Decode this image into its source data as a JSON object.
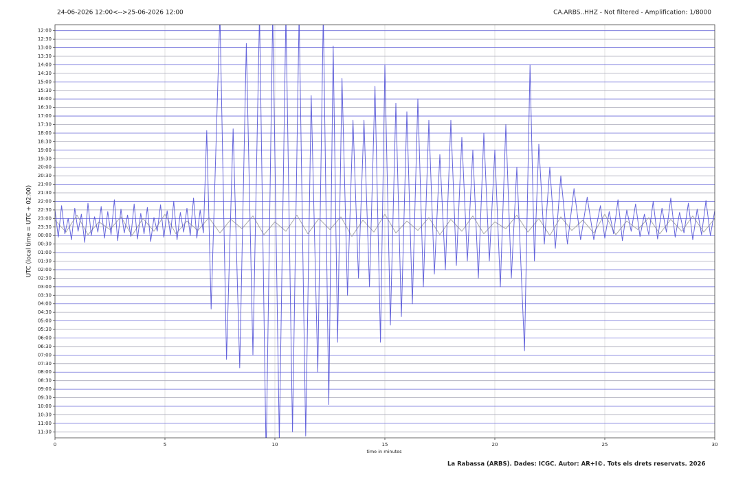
{
  "chart_data": {
    "type": "helicorder",
    "title": "24-06-2026 12:00<-->25-06-2026 12:00",
    "subtitle": "CA.ARBS..HHZ - Not filtered - Amplification: 1/8000",
    "x_label": "time in minutes",
    "y_label": "UTC (local time = UTC + 02:00)",
    "footer": "La Rabassa (ARBS). Dades: ICGC. Autor: AR+I©. Tots els drets reservats. 2026",
    "xlim": [
      0,
      30
    ],
    "xticks": [
      0,
      5,
      10,
      15,
      20,
      25,
      30
    ],
    "ylim": [
      47.7,
      -0.7
    ],
    "yticks": [
      {
        "value": 0,
        "label": "12:00"
      },
      {
        "value": 1,
        "label": "12:30"
      },
      {
        "value": 2,
        "label": "13:00"
      },
      {
        "value": 3,
        "label": "13:30"
      },
      {
        "value": 4,
        "label": "14:00"
      },
      {
        "value": 5,
        "label": "14:30"
      },
      {
        "value": 6,
        "label": "15:00"
      },
      {
        "value": 7,
        "label": "15:30"
      },
      {
        "value": 8,
        "label": "16:00"
      },
      {
        "value": 9,
        "label": "16:30"
      },
      {
        "value": 10,
        "label": "17:00"
      },
      {
        "value": 11,
        "label": "17:30"
      },
      {
        "value": 12,
        "label": "18:00"
      },
      {
        "value": 13,
        "label": "18:30"
      },
      {
        "value": 14,
        "label": "19:00"
      },
      {
        "value": 15,
        "label": "19:30"
      },
      {
        "value": 16,
        "label": "20:00"
      },
      {
        "value": 17,
        "label": "20:30"
      },
      {
        "value": 18,
        "label": "21:00"
      },
      {
        "value": 19,
        "label": "21:30"
      },
      {
        "value": 20,
        "label": "22:00"
      },
      {
        "value": 21,
        "label": "22:30"
      },
      {
        "value": 22,
        "label": "23:00"
      },
      {
        "value": 23,
        "label": "23:30"
      },
      {
        "value": 24,
        "label": "00:00"
      },
      {
        "value": 25,
        "label": "00:30"
      },
      {
        "value": 26,
        "label": "01:00"
      },
      {
        "value": 27,
        "label": "01:30"
      },
      {
        "value": 28,
        "label": "02:00"
      },
      {
        "value": 29,
        "label": "02:30"
      },
      {
        "value": 30,
        "label": "03:00"
      },
      {
        "value": 31,
        "label": "03:30"
      },
      {
        "value": 32,
        "label": "04:00"
      },
      {
        "value": 33,
        "label": "04:30"
      },
      {
        "value": 34,
        "label": "05:00"
      },
      {
        "value": 35,
        "label": "05:30"
      },
      {
        "value": 36,
        "label": "06:00"
      },
      {
        "value": 37,
        "label": "06:30"
      },
      {
        "value": 38,
        "label": "07:00"
      },
      {
        "value": 39,
        "label": "07:30"
      },
      {
        "value": 40,
        "label": "08:00"
      },
      {
        "value": 41,
        "label": "08:30"
      },
      {
        "value": 42,
        "label": "09:00"
      },
      {
        "value": 43,
        "label": "09:30"
      },
      {
        "value": 44,
        "label": "10:00"
      },
      {
        "value": 45,
        "label": "10:30"
      },
      {
        "value": 46,
        "label": "11:00"
      },
      {
        "value": 47,
        "label": "11:30"
      }
    ],
    "grid": true,
    "row_colors": [
      "#6a6ad8",
      "#a8a8b8"
    ],
    "series": [
      {
        "color": "#9a9a9a",
        "x": [
          0,
          0.5,
          1,
          1.5,
          2,
          2.5,
          3,
          3.5,
          4,
          4.5,
          5,
          5.5,
          6,
          6.5,
          7,
          7.5,
          8,
          8.5,
          9,
          9.5,
          10,
          10.5,
          11,
          11.5,
          12,
          12.5,
          13,
          13.5,
          14,
          14.5,
          15,
          15.5,
          16,
          16.5,
          17,
          17.5,
          18,
          18.5,
          19,
          19.5,
          20,
          20.5,
          21,
          21.5,
          22,
          22.5,
          23,
          23.5,
          24,
          24.5,
          25,
          25.5,
          26,
          26.5,
          27,
          27.5,
          28,
          28.5,
          29,
          29.5,
          30
        ],
        "values": [
          22.2,
          23.6,
          21.6,
          23.9,
          22.4,
          23.3,
          21.8,
          24.0,
          22.0,
          23.5,
          21.5,
          23.8,
          22.3,
          23.4,
          21.9,
          23.7,
          22.1,
          23.2,
          21.7,
          23.9,
          22.4,
          23.5,
          21.6,
          23.8,
          22.0,
          23.3,
          21.8,
          24.1,
          22.2,
          23.6,
          21.5,
          23.7,
          22.3,
          23.4,
          21.9,
          23.9,
          22.1,
          23.5,
          21.7,
          23.8,
          22.4,
          23.2,
          21.6,
          23.6,
          22.0,
          24.0,
          21.8,
          23.4,
          22.2,
          23.7,
          21.5,
          23.9,
          22.3,
          23.3,
          21.9,
          23.8,
          22.1,
          23.5,
          21.7,
          23.6,
          22.0
        ]
      },
      {
        "color": "#4b4bd6",
        "x": [
          0,
          0.15,
          0.3,
          0.45,
          0.6,
          0.75,
          0.9,
          1.05,
          1.2,
          1.35,
          1.5,
          1.65,
          1.8,
          1.95,
          2.1,
          2.25,
          2.4,
          2.55,
          2.7,
          2.85,
          3,
          3.15,
          3.3,
          3.45,
          3.6,
          3.75,
          3.9,
          4.05,
          4.2,
          4.35,
          4.5,
          4.65,
          4.8,
          4.95,
          5.1,
          5.25,
          5.4,
          5.55,
          5.7,
          5.85,
          6,
          6.15,
          6.3,
          6.45,
          6.6,
          6.75,
          6.9,
          7.1,
          7.5,
          7.8,
          8.1,
          8.4,
          8.7,
          9.0,
          9.3,
          9.6,
          9.9,
          10.2,
          10.5,
          10.8,
          11.1,
          11.4,
          11.65,
          11.95,
          12.2,
          12.45,
          12.65,
          12.85,
          13.05,
          13.3,
          13.55,
          13.8,
          14.05,
          14.3,
          14.55,
          14.8,
          15.0,
          15.25,
          15.5,
          15.75,
          16.0,
          16.25,
          16.5,
          16.75,
          17.0,
          17.25,
          17.5,
          17.75,
          18.0,
          18.25,
          18.5,
          18.75,
          19.0,
          19.25,
          19.5,
          19.75,
          20.0,
          20.25,
          20.5,
          20.75,
          21.0,
          21.35,
          21.6,
          21.8,
          22.0,
          22.25,
          22.5,
          22.75,
          23.0,
          23.3,
          23.6,
          23.9,
          24.2,
          24.5,
          24.8,
          25.0,
          25.2,
          25.4,
          25.6,
          25.8,
          26.0,
          26.2,
          26.4,
          26.6,
          26.8,
          27.0,
          27.2,
          27.4,
          27.6,
          27.8,
          28.0,
          28.2,
          28.4,
          28.6,
          28.8,
          29.0,
          29.2,
          29.4,
          29.6,
          29.8,
          30.0
        ],
        "values": [
          21.0,
          24.2,
          20.5,
          23.8,
          22.0,
          24.5,
          20.8,
          23.5,
          21.5,
          24.8,
          20.2,
          24.0,
          21.8,
          23.6,
          20.6,
          24.3,
          21.2,
          23.9,
          19.8,
          24.6,
          20.9,
          23.7,
          21.6,
          24.1,
          20.3,
          24.4,
          21.4,
          23.8,
          20.7,
          24.7,
          21.9,
          23.5,
          20.4,
          24.2,
          21.1,
          23.9,
          20.0,
          24.5,
          21.3,
          23.6,
          20.8,
          24.0,
          19.6,
          24.3,
          21.0,
          23.7,
          11.7,
          32.6,
          -2,
          38.5,
          11.5,
          39.5,
          1.5,
          38,
          -2,
          50,
          -2,
          48,
          -2,
          47,
          -2,
          47.5,
          7.6,
          40,
          -2,
          43.8,
          1.8,
          36.5,
          5.6,
          31,
          10.5,
          29,
          10.5,
          30,
          6.5,
          36.5,
          4,
          34.5,
          8.5,
          33.5,
          9.5,
          32,
          8,
          30,
          10.5,
          28.5,
          14.5,
          28,
          10.5,
          27.5,
          12.5,
          27,
          14,
          29,
          12,
          27,
          14,
          30,
          11,
          29,
          16,
          37.5,
          4,
          27,
          13.3,
          25,
          16,
          25.5,
          17,
          25,
          18.5,
          24.5,
          19.5,
          24.5,
          20.5,
          24.3,
          21.2,
          23.8,
          19.8,
          24.6,
          21.0,
          23.5,
          20.3,
          24.1,
          21.5,
          23.9,
          20.0,
          24.4,
          20.8,
          23.6,
          19.6,
          24.2,
          21.3,
          23.7,
          20.2,
          24.5,
          20.9,
          23.9,
          19.9,
          24.0,
          21.1
        ]
      }
    ]
  }
}
